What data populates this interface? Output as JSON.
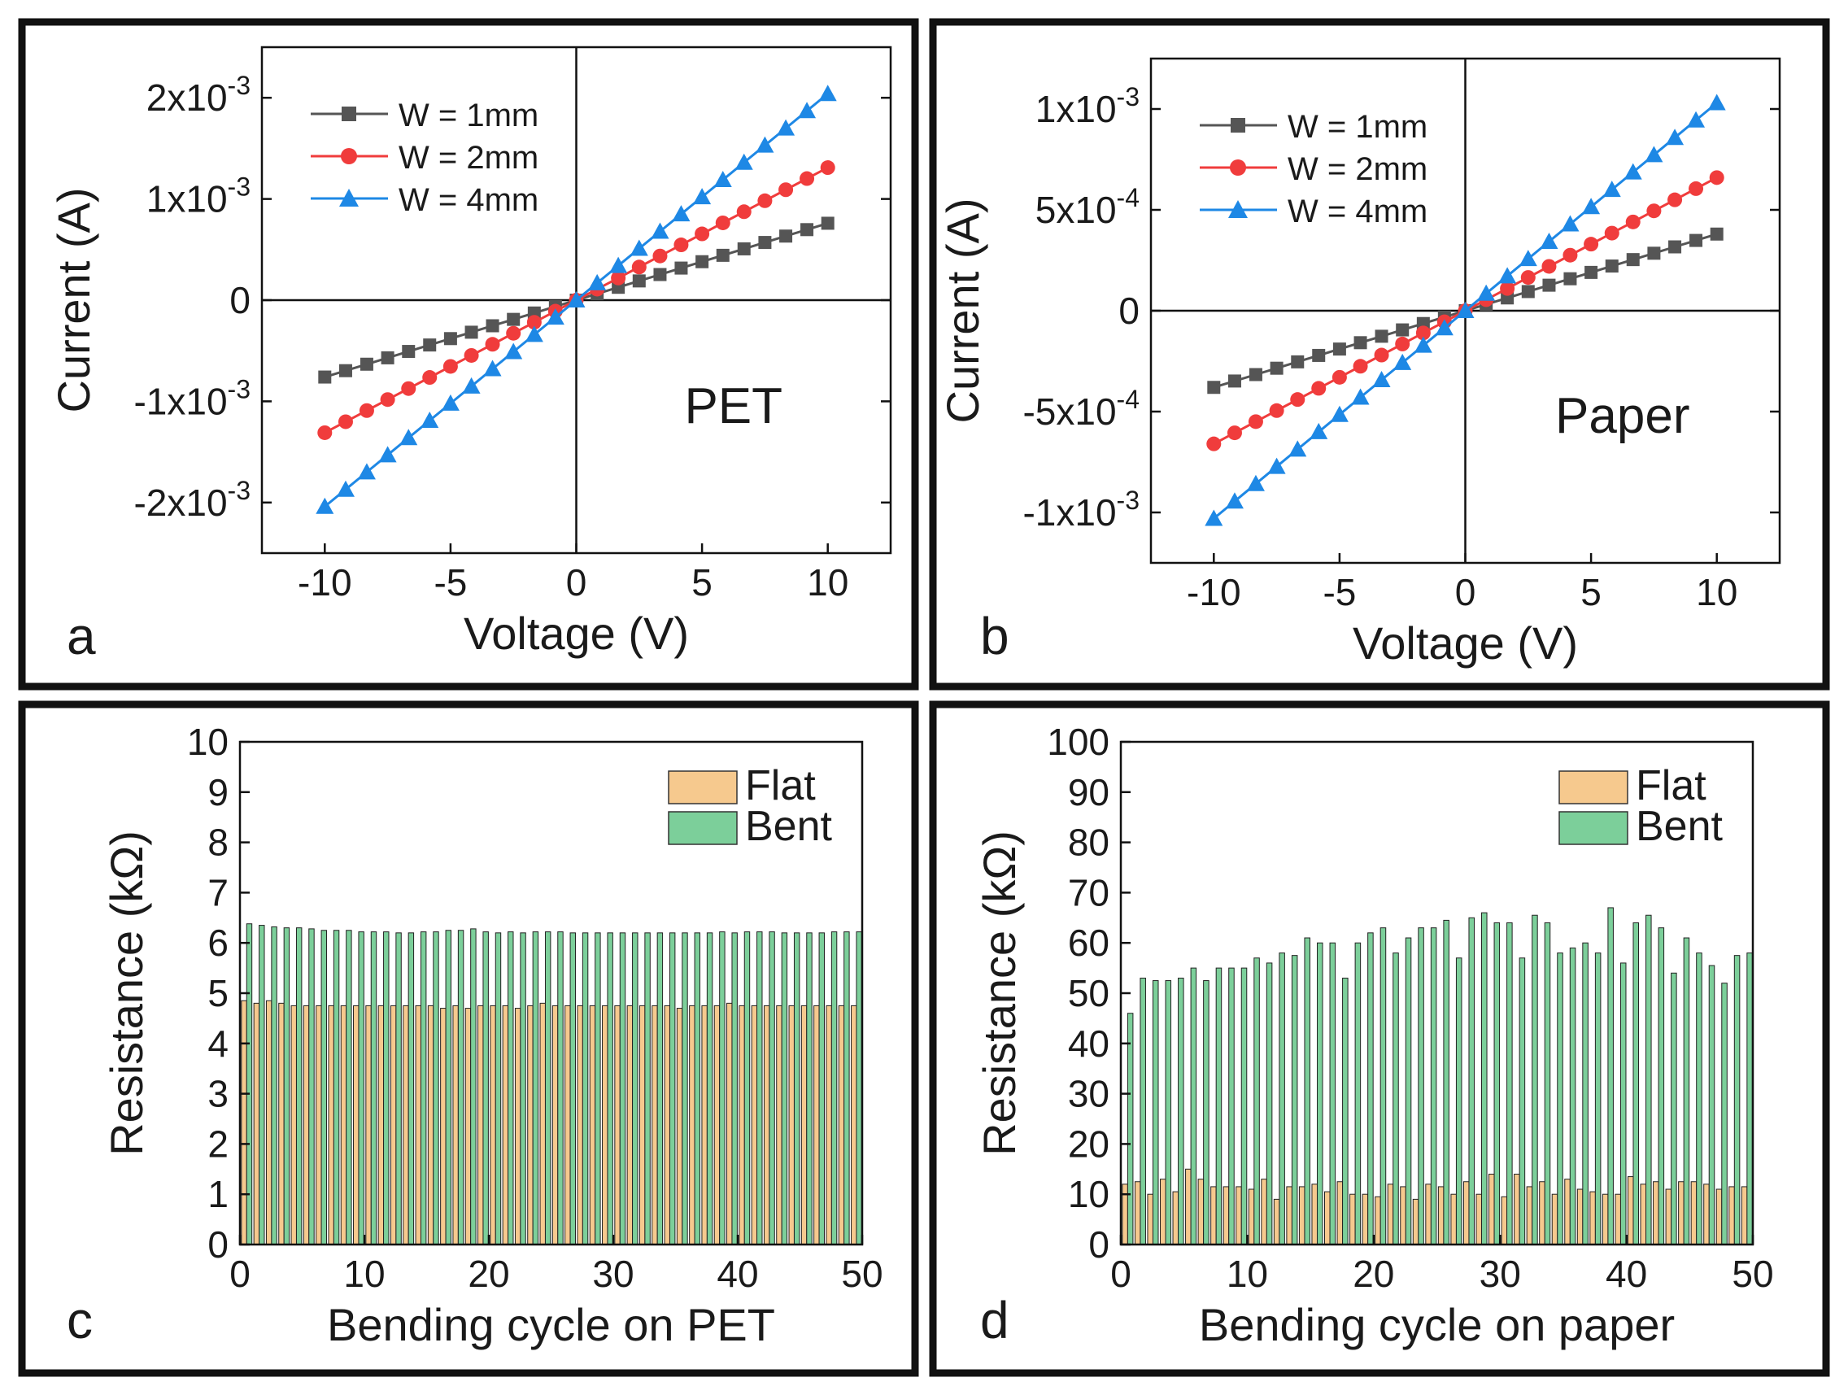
{
  "chart_data": [
    {
      "panel": "a",
      "type": "line",
      "annotation": "PET",
      "xlabel": "Voltage (V)",
      "ylabel": "Current (A)",
      "xlim": [
        -12.5,
        12.5
      ],
      "ylim": [
        -0.0025,
        0.0025
      ],
      "xticks": [
        -10,
        -5,
        0,
        5,
        10
      ],
      "xtick_labels": [
        "-10",
        "-5",
        "0",
        "5",
        "10"
      ],
      "yticks": [
        -0.002,
        -0.001,
        0,
        0.001,
        0.002
      ],
      "ytick_labels": [
        {
          "mantissa": "-2x10",
          "exp": "-3"
        },
        {
          "mantissa": "-1x10",
          "exp": "-3"
        },
        {
          "mantissa": "0",
          "exp": ""
        },
        {
          "mantissa": "1x10",
          "exp": "-3"
        },
        {
          "mantissa": "2x10",
          "exp": "-3"
        }
      ],
      "x": [
        -10,
        -9.17,
        -8.33,
        -7.5,
        -6.67,
        -5.83,
        -5,
        -4.17,
        -3.33,
        -2.5,
        -1.67,
        -0.83,
        0,
        0.83,
        1.67,
        2.5,
        3.33,
        4.17,
        5,
        5.83,
        6.67,
        7.5,
        8.33,
        9.17,
        10
      ],
      "series": [
        {
          "name": "W = 1mm",
          "color": "#555555",
          "marker": "square",
          "slope": 7.6e-05
        },
        {
          "name": "W = 2mm",
          "color": "#f03c3c",
          "marker": "circle",
          "slope": 0.000131
        },
        {
          "name": "W = 4mm",
          "color": "#1e88e5",
          "marker": "triangle",
          "slope": 0.000204
        }
      ],
      "legend_position": "top-left"
    },
    {
      "panel": "b",
      "type": "line",
      "annotation": "Paper",
      "xlabel": "Voltage (V)",
      "ylabel": "Current (A)",
      "xlim": [
        -12.5,
        12.5
      ],
      "ylim": [
        -0.00125,
        0.00125
      ],
      "xticks": [
        -10,
        -5,
        0,
        5,
        10
      ],
      "xtick_labels": [
        "-10",
        "-5",
        "0",
        "5",
        "10"
      ],
      "yticks": [
        -0.001,
        -0.0005,
        0,
        0.0005,
        0.001
      ],
      "ytick_labels": [
        {
          "mantissa": "-1x10",
          "exp": "-3"
        },
        {
          "mantissa": "-5x10",
          "exp": "-4"
        },
        {
          "mantissa": "0",
          "exp": ""
        },
        {
          "mantissa": "5x10",
          "exp": "-4"
        },
        {
          "mantissa": "1x10",
          "exp": "-3"
        }
      ],
      "x": [
        -10,
        -9.17,
        -8.33,
        -7.5,
        -6.67,
        -5.83,
        -5,
        -4.17,
        -3.33,
        -2.5,
        -1.67,
        -0.83,
        0,
        0.83,
        1.67,
        2.5,
        3.33,
        4.17,
        5,
        5.83,
        6.67,
        7.5,
        8.33,
        9.17,
        10
      ],
      "series": [
        {
          "name": "W = 1mm",
          "color": "#555555",
          "marker": "square",
          "slope": 3.8e-05
        },
        {
          "name": "W = 2mm",
          "color": "#f03c3c",
          "marker": "circle",
          "slope": 6.6e-05
        },
        {
          "name": "W = 4mm",
          "color": "#1e88e5",
          "marker": "triangle",
          "slope": 0.000103
        }
      ],
      "legend_position": "top-left"
    },
    {
      "panel": "c",
      "type": "bar",
      "xlabel": "Bending cycle on PET",
      "ylabel": "Resistance (kΩ)",
      "xlim": [
        0,
        50
      ],
      "ylim": [
        0,
        10
      ],
      "xticks": [
        0,
        10,
        20,
        30,
        40,
        50
      ],
      "xtick_labels": [
        "0",
        "10",
        "20",
        "30",
        "40",
        "50"
      ],
      "yticks": [
        0,
        1,
        2,
        3,
        4,
        5,
        6,
        7,
        8,
        9,
        10
      ],
      "ytick_labels": [
        "0",
        "1",
        "2",
        "3",
        "4",
        "5",
        "6",
        "7",
        "8",
        "9",
        "10"
      ],
      "categories": [
        1,
        2,
        3,
        4,
        5,
        6,
        7,
        8,
        9,
        10,
        11,
        12,
        13,
        14,
        15,
        16,
        17,
        18,
        19,
        20,
        21,
        22,
        23,
        24,
        25,
        26,
        27,
        28,
        29,
        30,
        31,
        32,
        33,
        34,
        35,
        36,
        37,
        38,
        39,
        40,
        41,
        42,
        43,
        44,
        45,
        46,
        47,
        48,
        49,
        50
      ],
      "series": [
        {
          "name": "Flat",
          "color": "#f6c98e",
          "values": [
            4.85,
            4.8,
            4.85,
            4.8,
            4.75,
            4.75,
            4.75,
            4.75,
            4.75,
            4.75,
            4.75,
            4.75,
            4.75,
            4.75,
            4.75,
            4.75,
            4.7,
            4.75,
            4.7,
            4.75,
            4.75,
            4.75,
            4.7,
            4.75,
            4.8,
            4.75,
            4.75,
            4.75,
            4.75,
            4.75,
            4.75,
            4.75,
            4.75,
            4.75,
            4.75,
            4.7,
            4.75,
            4.75,
            4.75,
            4.8,
            4.75,
            4.75,
            4.75,
            4.75,
            4.75,
            4.75,
            4.75,
            4.75,
            4.75,
            4.75
          ]
        },
        {
          "name": "Bent",
          "color": "#7ccf9a",
          "values": [
            6.38,
            6.35,
            6.32,
            6.3,
            6.3,
            6.28,
            6.25,
            6.25,
            6.25,
            6.22,
            6.22,
            6.22,
            6.2,
            6.2,
            6.22,
            6.22,
            6.25,
            6.25,
            6.28,
            6.22,
            6.2,
            6.22,
            6.2,
            6.22,
            6.22,
            6.22,
            6.2,
            6.2,
            6.2,
            6.2,
            6.2,
            6.2,
            6.2,
            6.2,
            6.2,
            6.2,
            6.2,
            6.2,
            6.22,
            6.2,
            6.22,
            6.22,
            6.22,
            6.2,
            6.2,
            6.2,
            6.2,
            6.22,
            6.22,
            6.22
          ]
        }
      ],
      "legend_position": "top-right"
    },
    {
      "panel": "d",
      "type": "bar",
      "xlabel": "Bending cycle on paper",
      "ylabel": "Resistance (kΩ)",
      "xlim": [
        0,
        50
      ],
      "ylim": [
        0,
        100
      ],
      "xticks": [
        0,
        10,
        20,
        30,
        40,
        50
      ],
      "xtick_labels": [
        "0",
        "10",
        "20",
        "30",
        "40",
        "50"
      ],
      "yticks": [
        0,
        10,
        20,
        30,
        40,
        50,
        60,
        70,
        80,
        90,
        100
      ],
      "ytick_labels": [
        "0",
        "10",
        "20",
        "30",
        "40",
        "50",
        "60",
        "70",
        "80",
        "90",
        "100"
      ],
      "categories": [
        1,
        2,
        3,
        4,
        5,
        6,
        7,
        8,
        9,
        10,
        11,
        12,
        13,
        14,
        15,
        16,
        17,
        18,
        19,
        20,
        21,
        22,
        23,
        24,
        25,
        26,
        27,
        28,
        29,
        30,
        31,
        32,
        33,
        34,
        35,
        36,
        37,
        38,
        39,
        40,
        41,
        42,
        43,
        44,
        45,
        46,
        47,
        48,
        49,
        50
      ],
      "series": [
        {
          "name": "Flat",
          "color": "#f6c98e",
          "values": [
            12,
            12.5,
            10,
            13,
            10.5,
            15,
            13,
            11.5,
            11.5,
            11.5,
            11,
            13,
            9,
            11.5,
            11.5,
            12,
            10.5,
            12.5,
            10,
            10,
            9.5,
            12,
            11.5,
            9,
            12,
            11.5,
            10,
            12.5,
            10,
            14,
            9.5,
            14,
            11.5,
            12.5,
            10,
            13,
            11,
            10.5,
            10,
            10,
            13.5,
            12,
            12.5,
            11,
            12.5,
            12.5,
            12,
            11,
            11.5,
            11.5
          ]
        },
        {
          "name": "Bent",
          "color": "#7ccf9a",
          "values": [
            46,
            53,
            52.5,
            52.5,
            53,
            55,
            52.5,
            55,
            55,
            55,
            57,
            56,
            58,
            57.5,
            61,
            60,
            60,
            53,
            60,
            62,
            63,
            58,
            61,
            63,
            63,
            64.5,
            57,
            65,
            66,
            64,
            64,
            57,
            65.5,
            64,
            58,
            59,
            60,
            58,
            67,
            56,
            64,
            65.5,
            63,
            54,
            61,
            58,
            55.5,
            52,
            57.5,
            58
          ]
        }
      ],
      "legend_position": "top-right"
    }
  ]
}
